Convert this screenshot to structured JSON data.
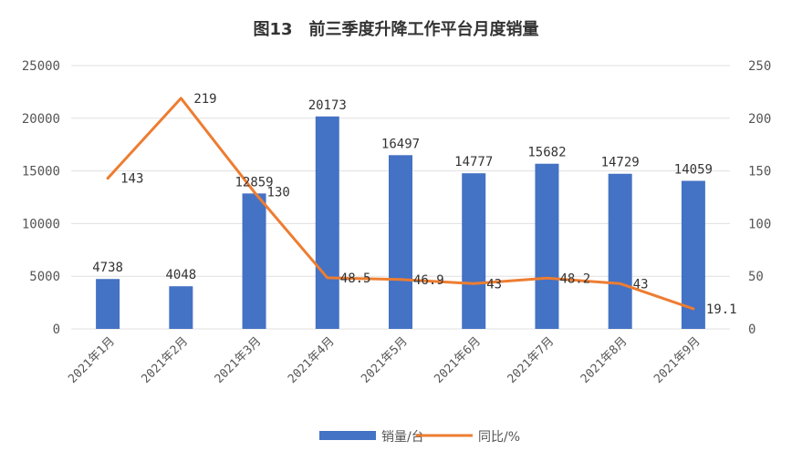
{
  "chart_data": {
    "type": "bar",
    "title": "图13　前三季度升降工作平台月度销量",
    "categories": [
      "2021年1月",
      "2021年2月",
      "2021年3月",
      "2021年4月",
      "2021年5月",
      "2021年6月",
      "2021年7月",
      "2021年8月",
      "2021年9月"
    ],
    "series": [
      {
        "name": "销量/台",
        "type": "bar",
        "axis": "left",
        "color": "#4472C4",
        "values": [
          4738,
          4048,
          12859,
          20173,
          16497,
          14777,
          15682,
          14729,
          14059
        ],
        "labels": [
          "4738",
          "4048",
          "12859",
          "20173",
          "16497",
          "14777",
          "15682",
          "14729",
          "14059"
        ]
      },
      {
        "name": "同比/%",
        "type": "line",
        "axis": "right",
        "color": "#ED7D31",
        "values": [
          143,
          219,
          130,
          48.5,
          46.9,
          43,
          48.2,
          43,
          19.1
        ],
        "labels": [
          "143",
          "219",
          "130",
          "48.5",
          "46.9",
          "43",
          "48.2",
          "43",
          "19.1"
        ]
      }
    ],
    "y_left": {
      "min": 0,
      "max": 25000,
      "ticks": [
        "0",
        "5000",
        "10000",
        "15000",
        "20000",
        "25000"
      ]
    },
    "y_right": {
      "min": 0,
      "max": 250,
      "ticks": [
        "0",
        "50",
        "100",
        "150",
        "200",
        "250"
      ]
    },
    "grid": true,
    "legend_position": "bottom"
  }
}
